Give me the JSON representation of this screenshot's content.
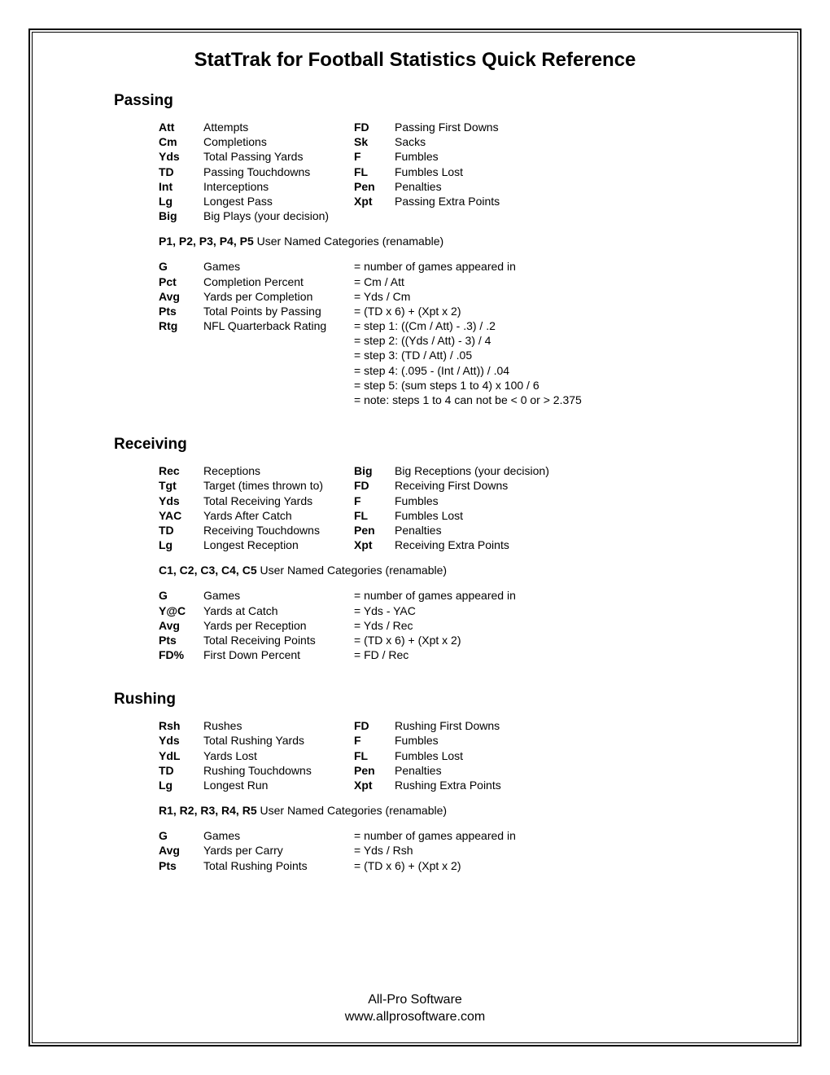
{
  "title": "StatTrak for Football Statistics Quick Reference",
  "footer": {
    "line1": "All-Pro Software",
    "line2": "www.allprosoftware.com"
  },
  "sections": {
    "passing": {
      "heading": "Passing",
      "defsA": [
        {
          "abbr": "Att",
          "desc": "Attempts"
        },
        {
          "abbr": "Cm",
          "desc": "Completions"
        },
        {
          "abbr": "Yds",
          "desc": "Total Passing Yards"
        },
        {
          "abbr": "TD",
          "desc": "Passing Touchdowns"
        },
        {
          "abbr": "Int",
          "desc": "Interceptions"
        },
        {
          "abbr": "Lg",
          "desc": "Longest Pass"
        },
        {
          "abbr": "Big",
          "desc": "Big Plays (your decision)"
        }
      ],
      "defsB": [
        {
          "abbr": "FD",
          "desc": "Passing First Downs"
        },
        {
          "abbr": "Sk",
          "desc": "Sacks"
        },
        {
          "abbr": "F",
          "desc": "Fumbles"
        },
        {
          "abbr": "FL",
          "desc": "Fumbles Lost"
        },
        {
          "abbr": "Pen",
          "desc": "Penalties"
        },
        {
          "abbr": "Xpt",
          "desc": "Passing Extra Points"
        }
      ],
      "user_named_bold": "P1, P2, P3, P4, P5",
      "user_named_rest": "  User Named Categories (renamable)",
      "calcs": [
        {
          "abbr": "G",
          "desc": "Games",
          "formula": "= number of games appeared in"
        },
        {
          "abbr": "Pct",
          "desc": "Completion Percent",
          "formula": "= Cm / Att"
        },
        {
          "abbr": "Avg",
          "desc": "Yards per Completion",
          "formula": "= Yds / Cm"
        },
        {
          "abbr": "Pts",
          "desc": "Total Points by Passing",
          "formula": "= (TD x 6) + (Xpt x 2)"
        },
        {
          "abbr": "Rtg",
          "desc": "NFL Quarterback Rating",
          "formula": "= step 1: ((Cm / Att) - .3) / .2"
        },
        {
          "abbr": "",
          "desc": "",
          "formula": "= step 2: ((Yds / Att) - 3) / 4"
        },
        {
          "abbr": "",
          "desc": "",
          "formula": "= step 3: (TD / Att) / .05"
        },
        {
          "abbr": "",
          "desc": "",
          "formula": "= step 4: (.095 - (Int / Att)) / .04"
        },
        {
          "abbr": "",
          "desc": "",
          "formula": "= step 5: (sum steps 1 to 4) x 100 / 6"
        },
        {
          "abbr": "",
          "desc": "",
          "formula": "= note: steps 1 to 4 can not be < 0 or > 2.375"
        }
      ]
    },
    "receiving": {
      "heading": "Receiving",
      "defsA": [
        {
          "abbr": "Rec",
          "desc": "Receptions"
        },
        {
          "abbr": "Tgt",
          "desc": "Target (times thrown to)"
        },
        {
          "abbr": "Yds",
          "desc": "Total Receiving Yards"
        },
        {
          "abbr": "YAC",
          "desc": "Yards After Catch"
        },
        {
          "abbr": "TD",
          "desc": "Receiving Touchdowns"
        },
        {
          "abbr": "Lg",
          "desc": "Longest Reception"
        }
      ],
      "defsB": [
        {
          "abbr": "Big",
          "desc": "Big Receptions (your decision)"
        },
        {
          "abbr": "FD",
          "desc": "Receiving First Downs"
        },
        {
          "abbr": "F",
          "desc": "Fumbles"
        },
        {
          "abbr": "FL",
          "desc": "Fumbles Lost"
        },
        {
          "abbr": "Pen",
          "desc": "Penalties"
        },
        {
          "abbr": "Xpt",
          "desc": "Receiving Extra Points"
        }
      ],
      "user_named_bold": "C1, C2, C3, C4, C5",
      "user_named_rest": "   User Named Categories (renamable)",
      "calcs": [
        {
          "abbr": "G",
          "desc": "Games",
          "formula": "= number of games appeared in"
        },
        {
          "abbr": "Y@C",
          "desc": "Yards at Catch",
          "formula": "= Yds - YAC"
        },
        {
          "abbr": "Avg",
          "desc": "Yards per Reception",
          "formula": "= Yds / Rec"
        },
        {
          "abbr": "Pts",
          "desc": "Total Receiving Points",
          "formula": "= (TD x 6) + (Xpt x 2)"
        },
        {
          "abbr": "FD%",
          "desc": "First Down Percent",
          "formula": "= FD / Rec"
        }
      ]
    },
    "rushing": {
      "heading": "Rushing",
      "defsA": [
        {
          "abbr": "Rsh",
          "desc": "Rushes"
        },
        {
          "abbr": "Yds",
          "desc": "Total Rushing Yards"
        },
        {
          "abbr": "YdL",
          "desc": "Yards Lost"
        },
        {
          "abbr": "TD",
          "desc": "Rushing Touchdowns"
        },
        {
          "abbr": "Lg",
          "desc": "Longest Run"
        }
      ],
      "defsB": [
        {
          "abbr": "FD",
          "desc": "Rushing First Downs"
        },
        {
          "abbr": "F",
          "desc": "Fumbles"
        },
        {
          "abbr": "FL",
          "desc": "Fumbles Lost"
        },
        {
          "abbr": "Pen",
          "desc": "Penalties"
        },
        {
          "abbr": "Xpt",
          "desc": "Rushing Extra Points"
        }
      ],
      "user_named_bold": "R1, R2, R3, R4, R5",
      "user_named_rest": "   User Named Categories (renamable)",
      "calcs": [
        {
          "abbr": "G",
          "desc": "Games",
          "formula": "= number of games appeared in"
        },
        {
          "abbr": "Avg",
          "desc": "Yards per Carry",
          "formula": "= Yds / Rsh"
        },
        {
          "abbr": "Pts",
          "desc": "Total Rushing Points",
          "formula": "= (TD x 6) + (Xpt x 2)"
        }
      ]
    }
  }
}
